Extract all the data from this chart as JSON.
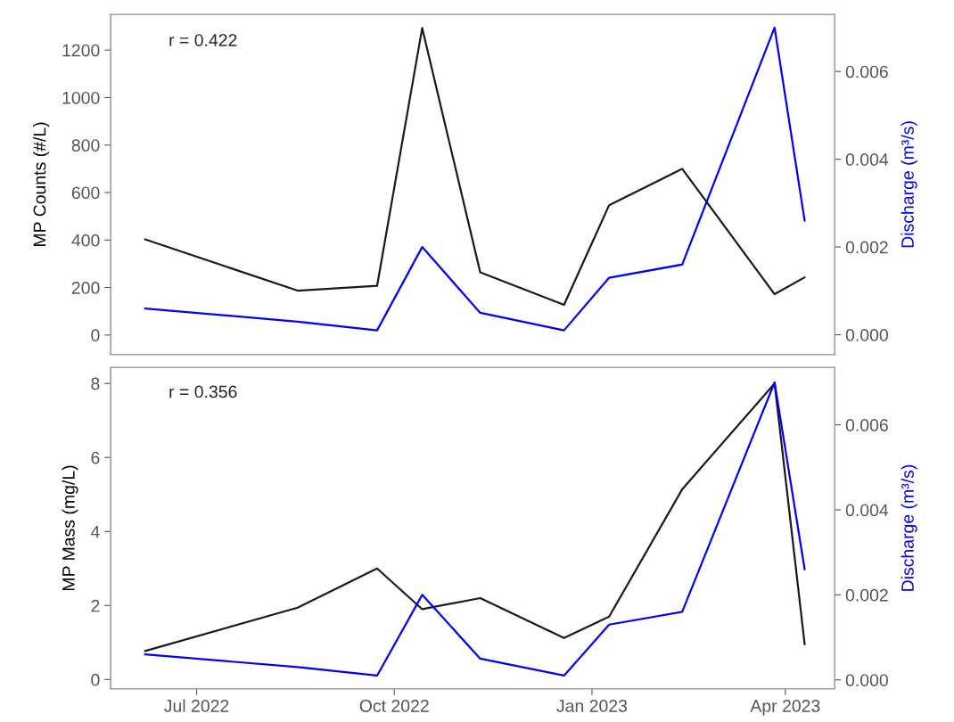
{
  "chart_data": [
    {
      "type": "line",
      "x": [
        "2022-06-07",
        "2022-08-17",
        "2022-09-23",
        "2022-10-14",
        "2022-11-10",
        "2022-12-19",
        "2023-01-09",
        "2023-02-12",
        "2023-03-27",
        "2023-04-10"
      ],
      "series": [
        {
          "color": "#1a1a1a",
          "values": [
            403,
            187,
            207,
            1293,
            264,
            127,
            547,
            700,
            172,
            243
          ]
        },
        {
          "color": "#0000ff",
          "axis": "y2",
          "values": [
            0.0006,
            0.0003,
            0.0001,
            0.002,
            0.0005,
            0.0001,
            0.0013,
            0.0016,
            0.007,
            0.0026
          ]
        }
      ],
      "ylabel": "MP Counts (#/L)",
      "y2label": "Discharge (m³/s)",
      "xlim": [
        "2022-05-22",
        "2023-04-24"
      ],
      "ylim": [
        -82,
        1350
      ],
      "yticks": [
        0,
        200,
        400,
        600,
        800,
        1000,
        1200
      ],
      "y2lim": [
        -0.00045,
        0.0073
      ],
      "y2ticks": [
        {
          "value": 0,
          "label": "0.000"
        },
        {
          "value": 0.002,
          "label": "0.002"
        },
        {
          "value": 0.004,
          "label": "0.004"
        },
        {
          "value": 0.006,
          "label": "0.006"
        }
      ],
      "annotations": [
        "r = 0.422"
      ],
      "tick_labels": "y",
      "legend": false,
      "grid": false
    },
    {
      "type": "line",
      "x": [
        "2022-06-07",
        "2022-08-17",
        "2022-09-23",
        "2022-10-14",
        "2022-11-10",
        "2022-12-19",
        "2023-01-09",
        "2023-02-12",
        "2023-03-27",
        "2023-04-10"
      ],
      "series": [
        {
          "color": "#1a1a1a",
          "values": [
            0.77,
            1.94,
            3.0,
            1.9,
            2.2,
            1.12,
            1.7,
            5.14,
            8.0,
            0.95
          ]
        },
        {
          "color": "#0000ff",
          "axis": "y2",
          "values": [
            0.0006,
            0.0003,
            0.0001,
            0.002,
            0.0005,
            0.0001,
            0.0013,
            0.0016,
            0.007,
            0.0026
          ]
        }
      ],
      "ylabel": "MP Mass (mg/L)",
      "y2label": "Discharge (m³/s)",
      "xlim": [
        "2022-05-22",
        "2023-04-24"
      ],
      "xticks": [
        {
          "value": "2022-07-01",
          "label": "Jul 2022"
        },
        {
          "value": "2022-10-01",
          "label": "Oct 2022"
        },
        {
          "value": "2023-01-01",
          "label": "Jan 2023"
        },
        {
          "value": "2023-04-01",
          "label": "Apr 2023"
        }
      ],
      "ylim": [
        -0.25,
        8.43
      ],
      "yticks": [
        0,
        2,
        4,
        6,
        8
      ],
      "y2lim": [
        -0.00021,
        0.00735
      ],
      "y2ticks": [
        {
          "value": 0,
          "label": "0.000"
        },
        {
          "value": 0.002,
          "label": "0.002"
        },
        {
          "value": 0.004,
          "label": "0.004"
        },
        {
          "value": 0.006,
          "label": "0.006"
        }
      ],
      "annotations": [
        "r = 0.356"
      ],
      "legend": false,
      "grid": false
    }
  ]
}
